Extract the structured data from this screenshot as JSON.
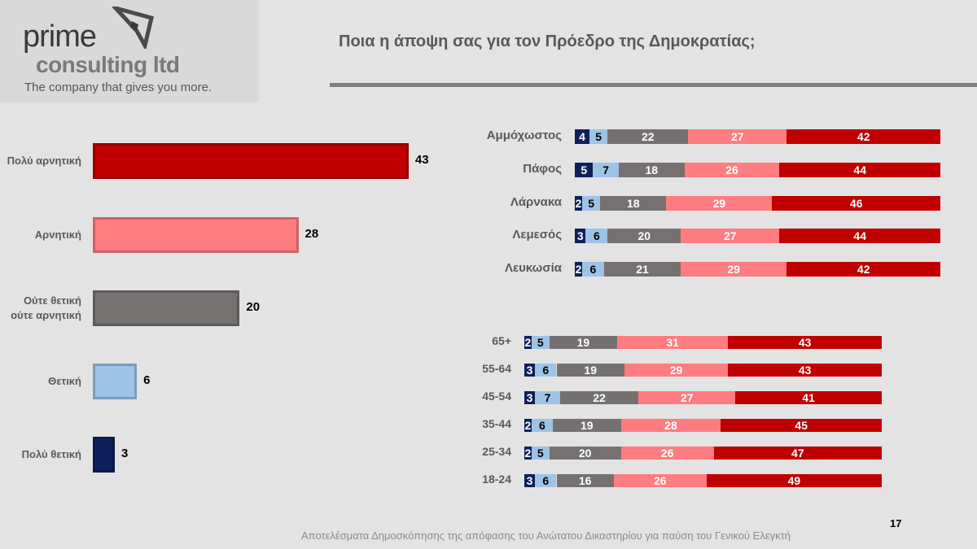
{
  "logo": {
    "line1": "prime",
    "line2": "consulting ltd",
    "tagline": "The company that gives you more."
  },
  "title": "Ποια η άποψη σας για τον Πρόεδρο της Δημοκρατίας;",
  "footer": "Αποτελέσματα Δημοσκόπησης της απόφασης του Ανώτατου Δικαστηρίου για παύση του Γενικού Ελεγκτή",
  "page_number": "17",
  "colors": {
    "very_positive": "#0e1f5b",
    "positive": "#9dc3e6",
    "neutral": "#767171",
    "negative": "#ff7c80",
    "very_negative": "#c00000"
  },
  "chart_data": [
    {
      "type": "bar",
      "orientation": "horizontal",
      "categories": [
        "Πολύ αρνητική",
        "Αρνητική",
        "Ούτε θετική ούτε αρνητική",
        "Θετική",
        "Πολύ θετική"
      ],
      "values": [
        43,
        28,
        20,
        6,
        3
      ],
      "colors": [
        "#c00000",
        "#ff7c80",
        "#767171",
        "#9dc3e6",
        "#0e1f5b"
      ]
    },
    {
      "type": "bar",
      "stacked": true,
      "orientation": "horizontal",
      "categories": [
        "Αμμόχωστος",
        "Πάφος",
        "Λάρνακα",
        "Λεμεσός",
        "Λευκωσία"
      ],
      "series": [
        {
          "values": [
            4,
            5,
            2,
            3,
            2
          ],
          "color": "#0e1f5b"
        },
        {
          "values": [
            5,
            7,
            5,
            6,
            6
          ],
          "color": "#9dc3e6"
        },
        {
          "values": [
            22,
            18,
            18,
            20,
            21
          ],
          "color": "#767171"
        },
        {
          "values": [
            27,
            26,
            29,
            27,
            29
          ],
          "color": "#ff7c80"
        },
        {
          "values": [
            42,
            44,
            46,
            44,
            42
          ],
          "color": "#c00000"
        }
      ]
    },
    {
      "type": "bar",
      "stacked": true,
      "orientation": "horizontal",
      "categories": [
        "65+",
        "55-64",
        "45-54",
        "35-44",
        "25-34",
        "18-24"
      ],
      "series": [
        {
          "values": [
            2,
            3,
            3,
            2,
            2,
            3
          ],
          "color": "#0e1f5b"
        },
        {
          "values": [
            5,
            6,
            7,
            6,
            5,
            6
          ],
          "color": "#9dc3e6"
        },
        {
          "values": [
            19,
            19,
            22,
            19,
            20,
            16
          ],
          "color": "#767171"
        },
        {
          "values": [
            31,
            29,
            27,
            28,
            26,
            26
          ],
          "color": "#ff7c80"
        },
        {
          "values": [
            43,
            43,
            41,
            45,
            47,
            49
          ],
          "color": "#c00000"
        }
      ]
    }
  ]
}
